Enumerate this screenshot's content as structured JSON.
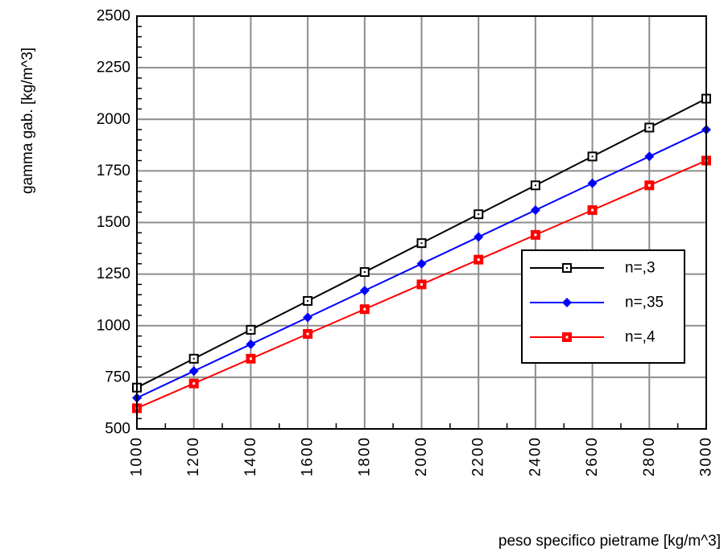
{
  "chart_data": {
    "type": "line",
    "xlabel": "peso specifico pietrame [kg/m^3]",
    "ylabel": "gamma gab. [kg/m^3]",
    "xlim": [
      1000,
      3000
    ],
    "ylim": [
      500,
      2500
    ],
    "x_ticks": [
      1000,
      1200,
      1400,
      1600,
      1800,
      2000,
      2200,
      2400,
      2600,
      2800,
      3000
    ],
    "y_ticks": [
      500,
      750,
      1000,
      1250,
      1500,
      1750,
      2000,
      2250,
      2500
    ],
    "x_minor_step": 100,
    "y_minor_step": 50,
    "grid": true,
    "legend_position": "center-right",
    "x": [
      1000,
      1200,
      1400,
      1600,
      1800,
      2000,
      2200,
      2400,
      2600,
      2800,
      3000
    ],
    "series": [
      {
        "name": "n=,3",
        "color": "#000000",
        "marker": "open-square",
        "values": [
          700,
          840,
          980,
          1120,
          1260,
          1400,
          1540,
          1680,
          1820,
          1960,
          2100
        ]
      },
      {
        "name": "n=,35",
        "color": "#0000ff",
        "marker": "filled-diamond",
        "values": [
          650,
          780,
          910,
          1040,
          1170,
          1300,
          1430,
          1560,
          1690,
          1820,
          1950
        ]
      },
      {
        "name": "n=,4",
        "color": "#ff0000",
        "marker": "dotted-square",
        "values": [
          600,
          720,
          840,
          960,
          1080,
          1200,
          1320,
          1440,
          1560,
          1680,
          1800
        ]
      }
    ]
  }
}
